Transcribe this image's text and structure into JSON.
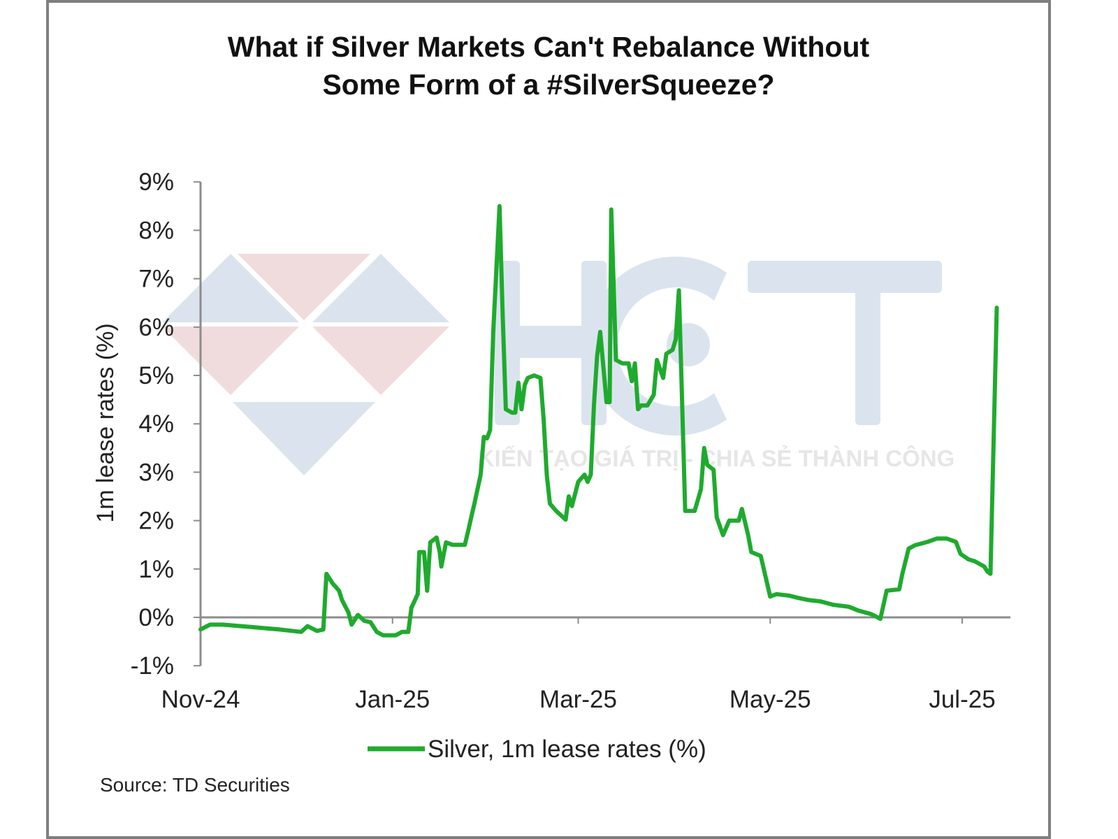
{
  "colors": {
    "line": "#1faa2e",
    "axis": "#8c8c8c",
    "frame": "#7f7f7f",
    "watermark_blue": "#dbe4ee",
    "watermark_red": "#f0dcdd",
    "watermark_text": "#e4e4e4"
  },
  "watermark": {
    "logo_text": "HCT",
    "tagline": "KIẾN TẠO GIÁ TRỊ - CHIA SẺ THÀNH CÔNG"
  },
  "chart_data": {
    "type": "line",
    "title_line1": "What if Silver Markets Can't Rebalance Without",
    "title_line2": "Some Form of a #SilverSqueeze?",
    "xlabel": "",
    "ylabel": "1m lease rates (%)",
    "x_unit": "days since Nov 1, 2024",
    "xlim": [
      0,
      256
    ],
    "ylim": [
      -1,
      9
    ],
    "y_ticks": [
      -1,
      0,
      1,
      2,
      3,
      4,
      5,
      6,
      7,
      8,
      9
    ],
    "y_tick_labels": [
      "-1%",
      "0%",
      "1%",
      "2%",
      "3%",
      "4%",
      "5%",
      "6%",
      "7%",
      "8%",
      "9%"
    ],
    "x_ticks": [
      0,
      61,
      120,
      181,
      242
    ],
    "x_tick_labels": [
      "Nov-24",
      "Jan-25",
      "Mar-25",
      "May-25",
      "Jul-25"
    ],
    "grid": false,
    "legend_position": "bottom-center",
    "source": "Source: TD Securities",
    "series": [
      {
        "name": "Silver, 1m lease rates (%)",
        "x": [
          0,
          3,
          7,
          16,
          25,
          32,
          34,
          37,
          39,
          40,
          42,
          44,
          45,
          47,
          48,
          50,
          52,
          54,
          56,
          58,
          62,
          64,
          66,
          67,
          69,
          69.5,
          71,
          72,
          73,
          75,
          76,
          76.5,
          78,
          80,
          84,
          85,
          86,
          87,
          89,
          90,
          91,
          92,
          93,
          95,
          96,
          97,
          99,
          100,
          101,
          102,
          103,
          104,
          106,
          108,
          109,
          110,
          111,
          113,
          116,
          117,
          118,
          120,
          122,
          123,
          124,
          125,
          126,
          127,
          129,
          130,
          130.5,
          132,
          134,
          136,
          137,
          138,
          139,
          140,
          142,
          144,
          145,
          147,
          148,
          150,
          151,
          152,
          153,
          154,
          157,
          159,
          160,
          161,
          163,
          164,
          166,
          168,
          171,
          172,
          174,
          175,
          178,
          181,
          183,
          187,
          190,
          193,
          197,
          201,
          206,
          209,
          213,
          216,
          218,
          222,
          223,
          225,
          227,
          231,
          234,
          237,
          240,
          241.5,
          244,
          246,
          249,
          250,
          251,
          253
        ],
        "values": [
          -0.25,
          -0.15,
          -0.15,
          -0.2,
          -0.25,
          -0.3,
          -0.18,
          -0.28,
          -0.25,
          0.9,
          0.7,
          0.55,
          0.35,
          0.1,
          -0.15,
          0.05,
          -0.07,
          -0.1,
          -0.3,
          -0.37,
          -0.37,
          -0.3,
          -0.3,
          0.2,
          0.48,
          1.35,
          1.35,
          0.55,
          1.55,
          1.65,
          1.35,
          1.05,
          1.55,
          1.5,
          1.5,
          1.78,
          2.07,
          2.35,
          2.95,
          3.73,
          3.7,
          3.87,
          5.9,
          8.5,
          6.25,
          4.3,
          4.23,
          4.23,
          4.85,
          4.3,
          4.8,
          4.95,
          5.0,
          4.95,
          4.1,
          2.95,
          2.35,
          2.2,
          2.02,
          2.5,
          2.3,
          2.8,
          2.95,
          2.8,
          2.95,
          4.38,
          5.4,
          5.9,
          4.45,
          4.45,
          8.43,
          5.32,
          5.25,
          5.25,
          4.88,
          5.25,
          4.3,
          4.38,
          4.38,
          4.6,
          5.32,
          4.95,
          5.45,
          5.53,
          5.75,
          6.76,
          4.5,
          2.2,
          2.2,
          2.65,
          3.5,
          3.15,
          3.05,
          2.07,
          1.7,
          2.0,
          2.0,
          2.24,
          1.7,
          1.35,
          1.27,
          0.43,
          0.48,
          0.45,
          0.4,
          0.36,
          0.33,
          0.26,
          0.22,
          0.14,
          0.07,
          -0.03,
          0.55,
          0.58,
          0.9,
          1.42,
          1.49,
          1.56,
          1.63,
          1.63,
          1.56,
          1.31,
          1.2,
          1.16,
          1.05,
          0.95,
          0.9,
          6.4
        ]
      }
    ]
  }
}
